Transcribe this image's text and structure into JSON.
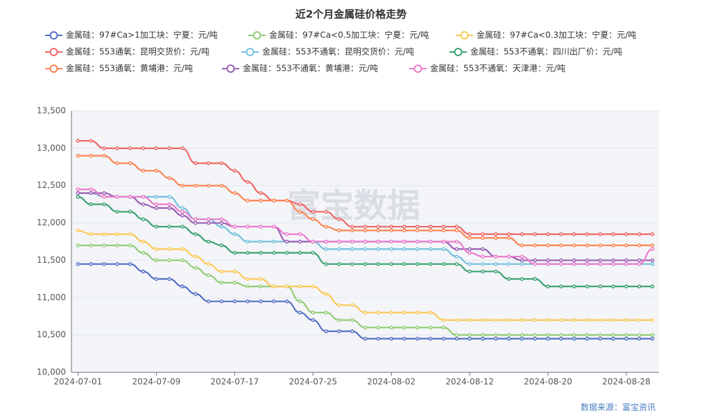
{
  "chart_data": {
    "type": "line",
    "title": "近2个月金属硅价格走势",
    "source": "数据来源：富宝资讯",
    "watermark": "富宝数据",
    "categories": [
      "2024-07-01",
      null,
      null,
      null,
      null,
      null,
      "2024-07-09",
      null,
      null,
      null,
      null,
      null,
      "2024-07-17",
      null,
      null,
      null,
      null,
      null,
      "2024-07-25",
      null,
      null,
      null,
      null,
      null,
      "2024-08-02",
      null,
      null,
      null,
      null,
      null,
      "2024-08-12",
      null,
      null,
      null,
      null,
      null,
      "2024-08-20",
      null,
      null,
      null,
      null,
      null,
      "2024-08-28",
      null,
      null
    ],
    "ylim": [
      10000,
      13500
    ],
    "yticks": [
      {
        "value": 10000,
        "label": "10,000"
      },
      {
        "value": 10500,
        "label": "10,500"
      },
      {
        "value": 11000,
        "label": "11,000"
      },
      {
        "value": 11500,
        "label": "11,500"
      },
      {
        "value": 12000,
        "label": "12,000"
      },
      {
        "value": 12500,
        "label": "12,500"
      },
      {
        "value": 13000,
        "label": "13,000"
      },
      {
        "value": 13500,
        "label": "13,500"
      }
    ],
    "grid": true,
    "series": [
      {
        "name": "金属硅：97#Ca>1加工块：宁夏：元/吨",
        "color": "#5470c6",
        "values": [
          11450,
          11450,
          11450,
          11450,
          11450,
          11350,
          11250,
          11250,
          11150,
          11050,
          10950,
          10950,
          10950,
          10950,
          10950,
          10950,
          10950,
          10800,
          10700,
          10550,
          10550,
          10550,
          10450,
          10450,
          10450,
          10450,
          10450,
          10450,
          10450,
          10450,
          10450,
          10450,
          10450,
          10450,
          10450,
          10450,
          10450,
          10450,
          10450,
          10450,
          10450,
          10450,
          10450,
          10450,
          10450
        ]
      },
      {
        "name": "金属硅：97#Ca<0.5加工块：宁夏：元/吨",
        "color": "#91cc75",
        "values": [
          11700,
          11700,
          11700,
          11700,
          11700,
          11600,
          11500,
          11500,
          11500,
          11400,
          11300,
          11200,
          11200,
          11150,
          11150,
          11150,
          11150,
          10950,
          10800,
          10800,
          10700,
          10700,
          10600,
          10600,
          10600,
          10600,
          10600,
          10600,
          10600,
          10500,
          10500,
          10500,
          10500,
          10500,
          10500,
          10500,
          10500,
          10500,
          10500,
          10500,
          10500,
          10500,
          10500,
          10500,
          10500
        ]
      },
      {
        "name": "金属硅：97#Ca<0.3加工块：宁夏：元/吨",
        "color": "#fac858",
        "values": [
          11900,
          11850,
          11850,
          11850,
          11850,
          11750,
          11650,
          11650,
          11650,
          11550,
          11450,
          11350,
          11350,
          11250,
          11250,
          11150,
          11150,
          11150,
          11150,
          11050,
          10900,
          10900,
          10800,
          10800,
          10800,
          10800,
          10800,
          10800,
          10700,
          10700,
          10700,
          10700,
          10700,
          10700,
          10700,
          10700,
          10700,
          10700,
          10700,
          10700,
          10700,
          10700,
          10700,
          10700,
          10700
        ]
      },
      {
        "name": "金属硅：553通氧：昆明交货价：元/吨",
        "color": "#ee6666",
        "values": [
          13100,
          13100,
          13000,
          13000,
          13000,
          13000,
          13000,
          13000,
          13000,
          12800,
          12800,
          12800,
          12700,
          12550,
          12400,
          12300,
          12300,
          12250,
          12150,
          12150,
          12050,
          11950,
          11950,
          11950,
          11950,
          11950,
          11950,
          11950,
          11950,
          11950,
          11850,
          11850,
          11850,
          11850,
          11850,
          11850,
          11850,
          11850,
          11850,
          11850,
          11850,
          11850,
          11850,
          11850,
          11850
        ]
      },
      {
        "name": "金属硅：553不通氧：昆明交货价：元/吨",
        "color": "#73c0de",
        "values": [
          12400,
          12400,
          12350,
          12350,
          12350,
          12350,
          12350,
          12350,
          12200,
          12050,
          12050,
          11950,
          11850,
          11750,
          11750,
          11750,
          11750,
          11750,
          11750,
          11650,
          11650,
          11650,
          11650,
          11650,
          11650,
          11650,
          11650,
          11650,
          11650,
          11550,
          11450,
          11450,
          11450,
          11450,
          11450,
          11450,
          11450,
          11450,
          11450,
          11450,
          11450,
          11450,
          11450,
          11450,
          11450
        ]
      },
      {
        "name": "金属硅：553不通氧：四川出厂价：元/吨",
        "color": "#3ba272",
        "values": [
          12350,
          12250,
          12250,
          12150,
          12150,
          12050,
          11950,
          11950,
          11950,
          11850,
          11750,
          11700,
          11600,
          11600,
          11600,
          11600,
          11600,
          11600,
          11600,
          11450,
          11450,
          11450,
          11450,
          11450,
          11450,
          11450,
          11450,
          11450,
          11450,
          11450,
          11350,
          11350,
          11350,
          11250,
          11250,
          11250,
          11150,
          11150,
          11150,
          11150,
          11150,
          11150,
          11150,
          11150,
          11150
        ]
      },
      {
        "name": "金属硅：553通氧：黄埔港：元/吨",
        "color": "#fc8452",
        "values": [
          12900,
          12900,
          12900,
          12800,
          12800,
          12700,
          12700,
          12600,
          12500,
          12500,
          12500,
          12500,
          12400,
          12300,
          12300,
          12300,
          12300,
          12150,
          12050,
          11950,
          11900,
          11900,
          11900,
          11900,
          11900,
          11900,
          11900,
          11900,
          11900,
          11900,
          11800,
          11800,
          11800,
          11800,
          11700,
          11700,
          11700,
          11700,
          11700,
          11700,
          11700,
          11700,
          11700,
          11700,
          11700
        ]
      },
      {
        "name": "金属硅：553不通氧：黄埔港：元/吨",
        "color": "#9a60b4",
        "values": [
          12400,
          12400,
          12400,
          12350,
          12350,
          12250,
          12200,
          12200,
          12100,
          12000,
          12000,
          12000,
          11950,
          11950,
          11950,
          11950,
          11750,
          11750,
          11750,
          11750,
          11750,
          11750,
          11750,
          11750,
          11750,
          11750,
          11750,
          11750,
          11750,
          11650,
          11650,
          11650,
          11550,
          11550,
          11500,
          11500,
          11500,
          11500,
          11500,
          11500,
          11500,
          11500,
          11500,
          11500,
          11500
        ]
      },
      {
        "name": "金属硅：553不通氧：天津港：元/吨",
        "color": "#ea7ccc",
        "values": [
          12450,
          12450,
          12350,
          12350,
          12350,
          12350,
          12250,
          12250,
          12150,
          12050,
          12050,
          12050,
          11950,
          11950,
          11950,
          11950,
          11850,
          11850,
          11750,
          11750,
          11750,
          11750,
          11750,
          11750,
          11750,
          11750,
          11750,
          11750,
          11750,
          11750,
          11600,
          11550,
          11550,
          11550,
          11550,
          11450,
          11450,
          11450,
          11450,
          11450,
          11450,
          11450,
          11450,
          11450,
          11650
        ]
      }
    ]
  }
}
